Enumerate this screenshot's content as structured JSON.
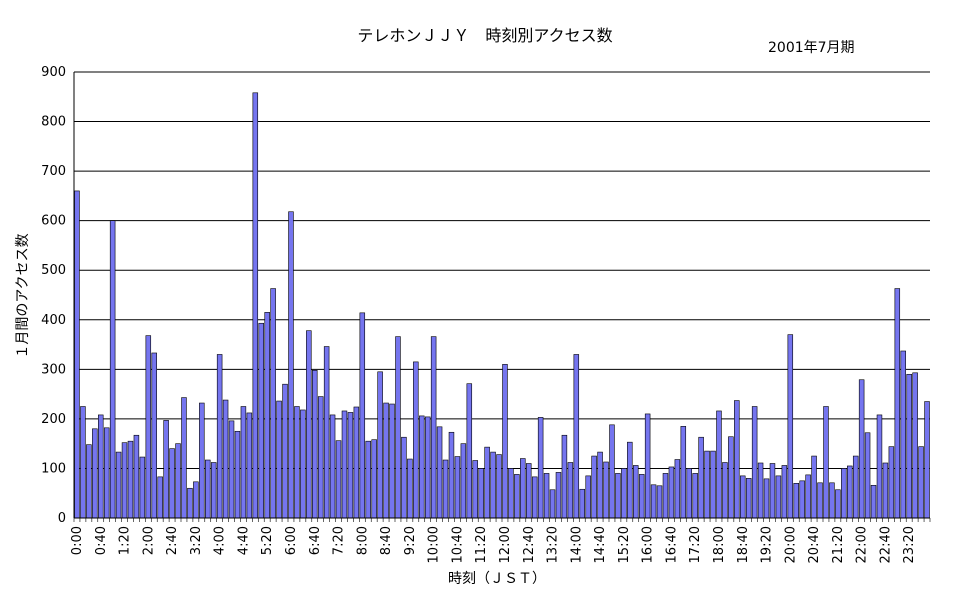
{
  "chart_data": {
    "type": "bar",
    "title": "テレホンＪＪＹ　時刻別アクセス数",
    "subtitle": "2001年7月期",
    "xlabel": "時刻（ＪＳＴ）",
    "ylabel": "１月間のアクセス数",
    "ylim": [
      0,
      900
    ],
    "y_ticks": [
      "0",
      "100",
      "200",
      "300",
      "400",
      "500",
      "600",
      "700",
      "800",
      "900"
    ],
    "x_tick_labels": [
      "0:00",
      "0:40",
      "1:20",
      "2:00",
      "2:40",
      "3:20",
      "4:00",
      "4:40",
      "5:20",
      "6:00",
      "6:40",
      "7:20",
      "8:00",
      "8:40",
      "9:20",
      "10:00",
      "10:40",
      "11:20",
      "12:00",
      "12:40",
      "13:20",
      "14:00",
      "14:40",
      "15:20",
      "16:00",
      "16:40",
      "17:20",
      "18:00",
      "18:40",
      "19:20",
      "20:00",
      "20:40",
      "21:20",
      "22:00",
      "22:40",
      "23:20"
    ],
    "bar_color": "#7575ef",
    "grid": true,
    "values": [
      660,
      225,
      148,
      180,
      208,
      182,
      600,
      133,
      152,
      155,
      167,
      123,
      368,
      333,
      83,
      197,
      140,
      150,
      243,
      60,
      73,
      232,
      117,
      112,
      330,
      238,
      196,
      175,
      225,
      212,
      858,
      393,
      415,
      463,
      236,
      270,
      618,
      225,
      218,
      378,
      298,
      245,
      346,
      208,
      156,
      216,
      213,
      224,
      414,
      155,
      158,
      295,
      232,
      230,
      366,
      163,
      119,
      315,
      206,
      204,
      366,
      184,
      117,
      173,
      124,
      150,
      271,
      116,
      100,
      143,
      133,
      128,
      310,
      100,
      88,
      120,
      110,
      83,
      203,
      90,
      57,
      92,
      167,
      112,
      330,
      58,
      85,
      125,
      133,
      113,
      188,
      90,
      100,
      153,
      106,
      88,
      210,
      67,
      65,
      90,
      103,
      118,
      185,
      100,
      90,
      163,
      135,
      135,
      216,
      112,
      164,
      237,
      85,
      80,
      225,
      111,
      79,
      110,
      85,
      106,
      370,
      70,
      75,
      87,
      125,
      71,
      225,
      71,
      57,
      100,
      105,
      125,
      279,
      172,
      66,
      208,
      111,
      144,
      463,
      337,
      290,
      293,
      144,
      235
    ]
  }
}
